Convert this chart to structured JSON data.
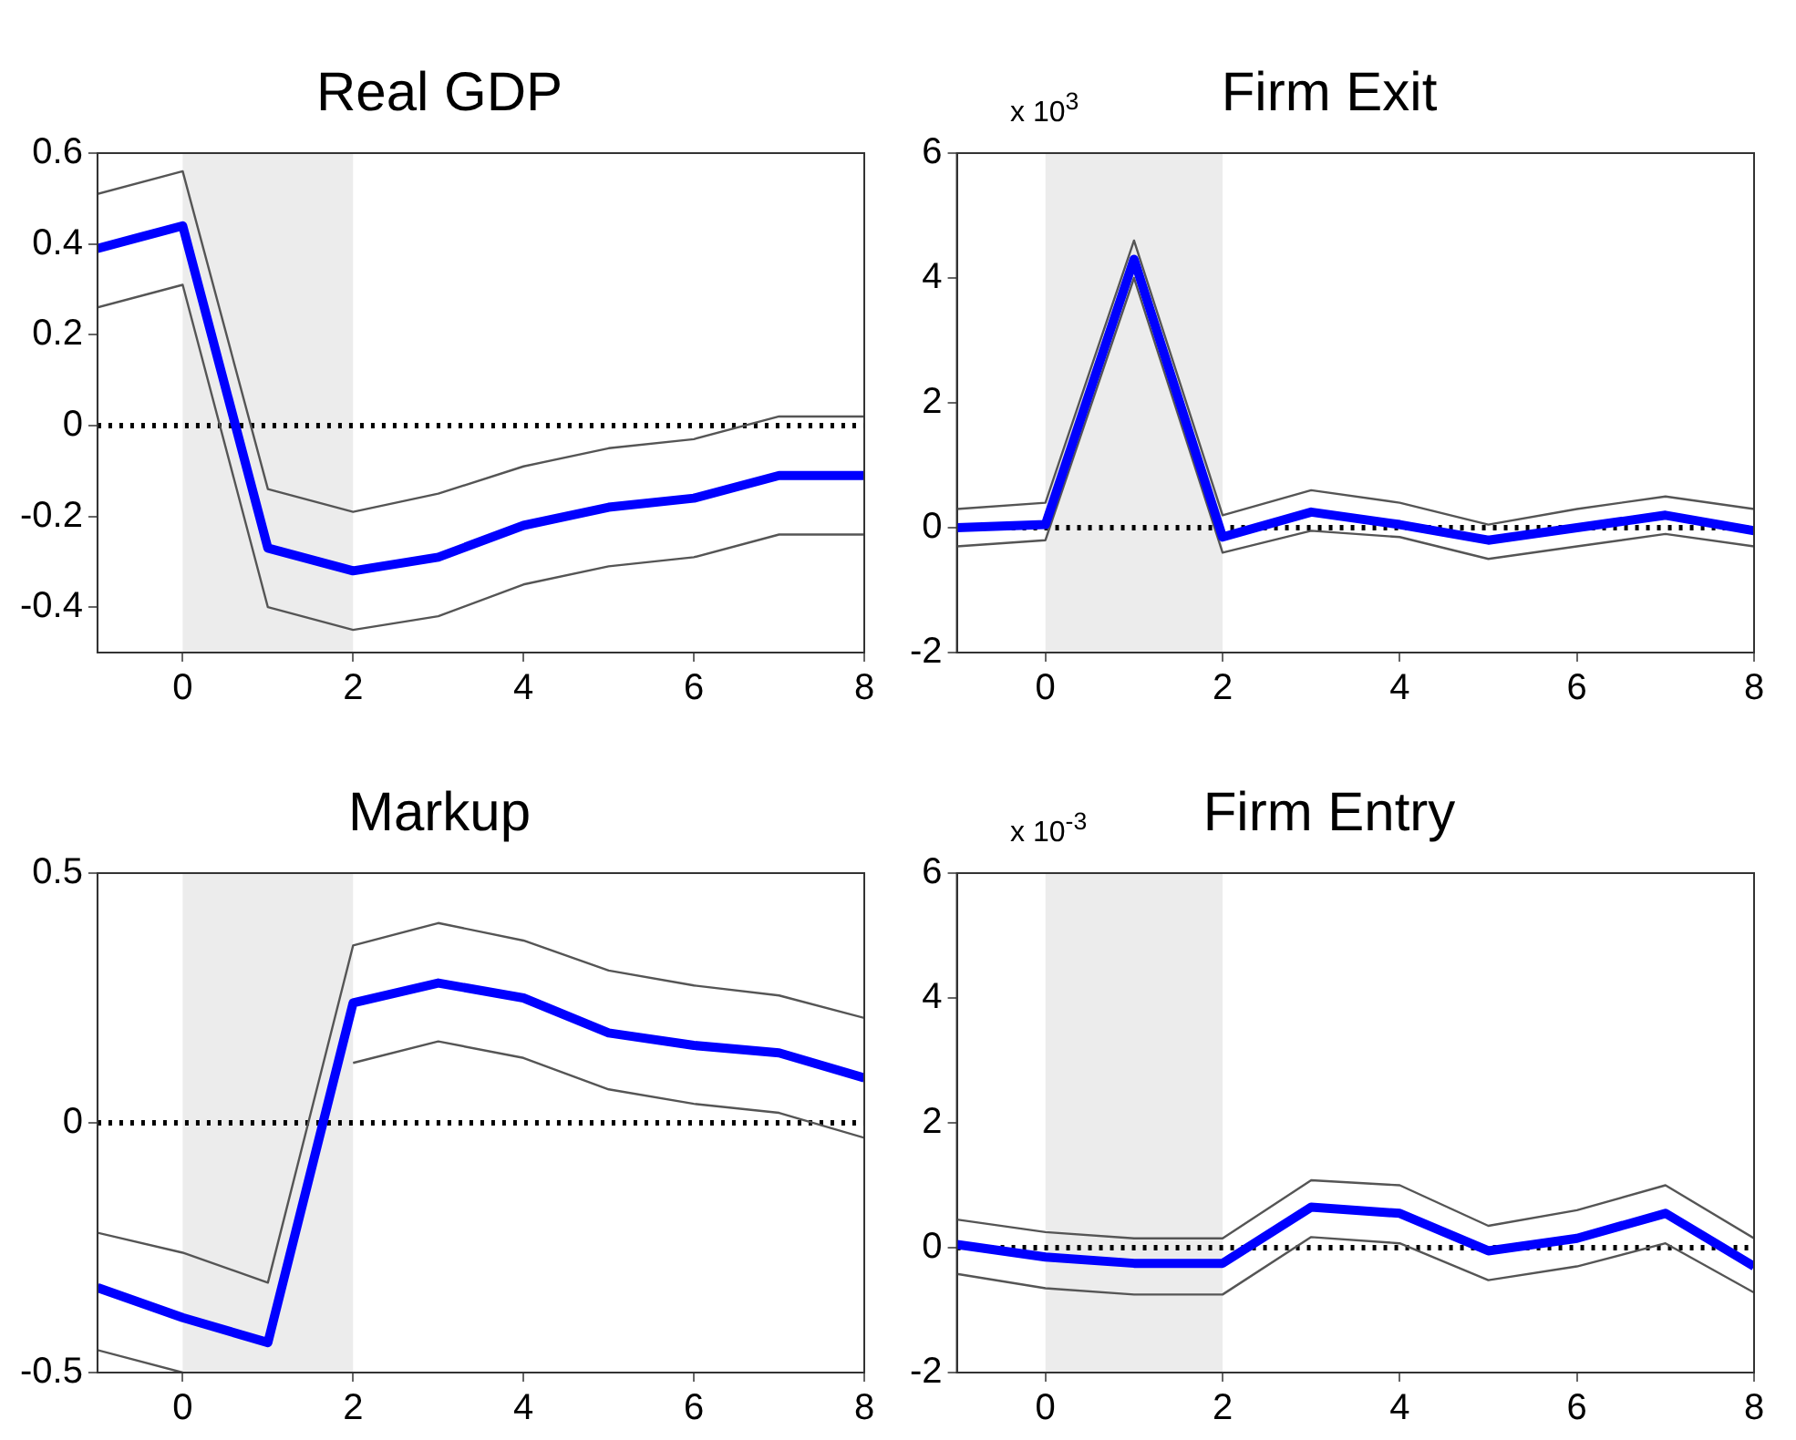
{
  "chart_data": [
    {
      "type": "line",
      "title": "Real GDP",
      "x": [
        -1,
        0,
        1,
        2,
        3,
        4,
        5,
        6,
        7,
        8
      ],
      "xlim": [
        -1,
        8
      ],
      "xticks": [
        0,
        2,
        4,
        6,
        8
      ],
      "ylim": [
        -0.5,
        0.6
      ],
      "yticks": [
        -0.4,
        -0.2,
        0,
        0.2,
        0.4,
        0.6
      ],
      "grid": false,
      "legend": false,
      "marker": "none",
      "series": [
        {
          "color": "#0000ff",
          "values": [
            0.39,
            0.44,
            -0.27,
            -0.32,
            -0.29,
            -0.22,
            -0.18,
            -0.16,
            -0.11,
            -0.11
          ]
        },
        {
          "color": "#555555",
          "values": [
            0.51,
            0.56,
            -0.14,
            -0.19,
            -0.15,
            -0.09,
            -0.05,
            -0.03,
            0.02,
            0.02
          ]
        },
        {
          "color": "#555555",
          "values": [
            0.26,
            0.31,
            -0.4,
            -0.45,
            -0.42,
            -0.35,
            -0.31,
            -0.29,
            -0.24,
            -0.24
          ]
        }
      ],
      "bands": [
        {
          "axis": "x",
          "from": 0,
          "to": 2,
          "color": "#ececec"
        }
      ],
      "ref_lines": [
        {
          "axis": "y",
          "value": 0,
          "color": "#000000",
          "line_style": "dotted"
        }
      ]
    },
    {
      "type": "line",
      "title": "Firm Exit",
      "annotations": [
        "x 10$^{3}$"
      ],
      "x": [
        -1,
        0,
        1,
        2,
        3,
        4,
        5,
        6,
        7,
        8
      ],
      "xlim": [
        -1,
        8
      ],
      "xticks": [
        0,
        2,
        4,
        6,
        8
      ],
      "ylim": [
        -2,
        6
      ],
      "yticks": [
        -2,
        0,
        2,
        4,
        6
      ],
      "grid": false,
      "legend": false,
      "marker": "none",
      "series": [
        {
          "color": "#0000ff",
          "values": [
            0,
            0.05,
            4.3,
            -0.15,
            0.25,
            0.05,
            -0.2,
            0,
            0.2,
            -0.05
          ]
        },
        {
          "color": "#555555",
          "values": [
            0.3,
            0.4,
            4.6,
            0.2,
            0.6,
            0.4,
            0.05,
            0.3,
            0.5,
            0.3
          ]
        },
        {
          "color": "#555555",
          "values": [
            -0.3,
            -0.2,
            4.0,
            -0.4,
            -0.05,
            -0.15,
            -0.5,
            -0.3,
            -0.1,
            -0.3
          ]
        }
      ],
      "bands": [
        {
          "axis": "x",
          "from": 0,
          "to": 2,
          "color": "#ececec"
        }
      ],
      "ref_lines": [
        {
          "axis": "y",
          "value": 0,
          "color": "#000000",
          "line_style": "dotted"
        }
      ]
    },
    {
      "type": "line",
      "title": "Markup",
      "x": [
        -1,
        0,
        1,
        2,
        3,
        4,
        5,
        6,
        7,
        8
      ],
      "xlim": [
        -1,
        8
      ],
      "xticks": [
        0,
        2,
        4,
        6,
        8
      ],
      "ylim": [
        -0.5,
        0.5
      ],
      "yticks": [
        -0.5,
        0,
        0.5
      ],
      "grid": false,
      "legend": false,
      "marker": "none",
      "series": [
        {
          "color": "#0000ff",
          "values": [
            -0.33,
            -0.39,
            -0.44,
            0.24,
            0.28,
            0.25,
            0.18,
            0.155,
            0.14,
            0.09
          ]
        },
        {
          "color": "#555555",
          "values": [
            -0.22,
            -0.26,
            -0.32,
            0.355,
            0.4,
            0.365,
            0.305,
            0.275,
            0.255,
            0.21
          ]
        },
        {
          "color": "#555555",
          "values": [
            -0.455,
            -0.5,
            null,
            0.12,
            0.163,
            0.13,
            0.067,
            0.038,
            0.02,
            -0.03
          ]
        }
      ],
      "bands": [
        {
          "axis": "x",
          "from": 0,
          "to": 2,
          "color": "#ececec"
        }
      ],
      "ref_lines": [
        {
          "axis": "y",
          "value": 0,
          "color": "#000000",
          "line_style": "dotted"
        }
      ]
    },
    {
      "type": "line",
      "title": "Firm Entry",
      "annotations": [
        "x 10$^{-3}$"
      ],
      "x": [
        -1,
        0,
        1,
        2,
        3,
        4,
        5,
        6,
        7,
        8
      ],
      "xlim": [
        -1,
        8
      ],
      "xticks": [
        0,
        2,
        4,
        6,
        8
      ],
      "ylim": [
        -2,
        6
      ],
      "yticks": [
        -2,
        0,
        2,
        4,
        6
      ],
      "grid": false,
      "legend": false,
      "marker": "none",
      "series": [
        {
          "color": "#0000ff",
          "values": [
            0.05,
            -0.15,
            -0.25,
            -0.25,
            0.65,
            0.55,
            -0.05,
            0.15,
            0.55,
            -0.3
          ]
        },
        {
          "color": "#555555",
          "values": [
            0.45,
            0.25,
            0.15,
            0.15,
            1.08,
            1.0,
            0.35,
            0.6,
            1.0,
            0.15
          ]
        },
        {
          "color": "#555555",
          "values": [
            -0.42,
            -0.65,
            -0.75,
            -0.75,
            0.17,
            0.07,
            -0.52,
            -0.3,
            0.07,
            -0.72
          ]
        }
      ],
      "bands": [
        {
          "axis": "x",
          "from": 0,
          "to": 2,
          "color": "#ececec"
        }
      ],
      "ref_lines": [
        {
          "axis": "y",
          "value": 0,
          "color": "#000000",
          "line_style": "dotted"
        }
      ]
    }
  ]
}
